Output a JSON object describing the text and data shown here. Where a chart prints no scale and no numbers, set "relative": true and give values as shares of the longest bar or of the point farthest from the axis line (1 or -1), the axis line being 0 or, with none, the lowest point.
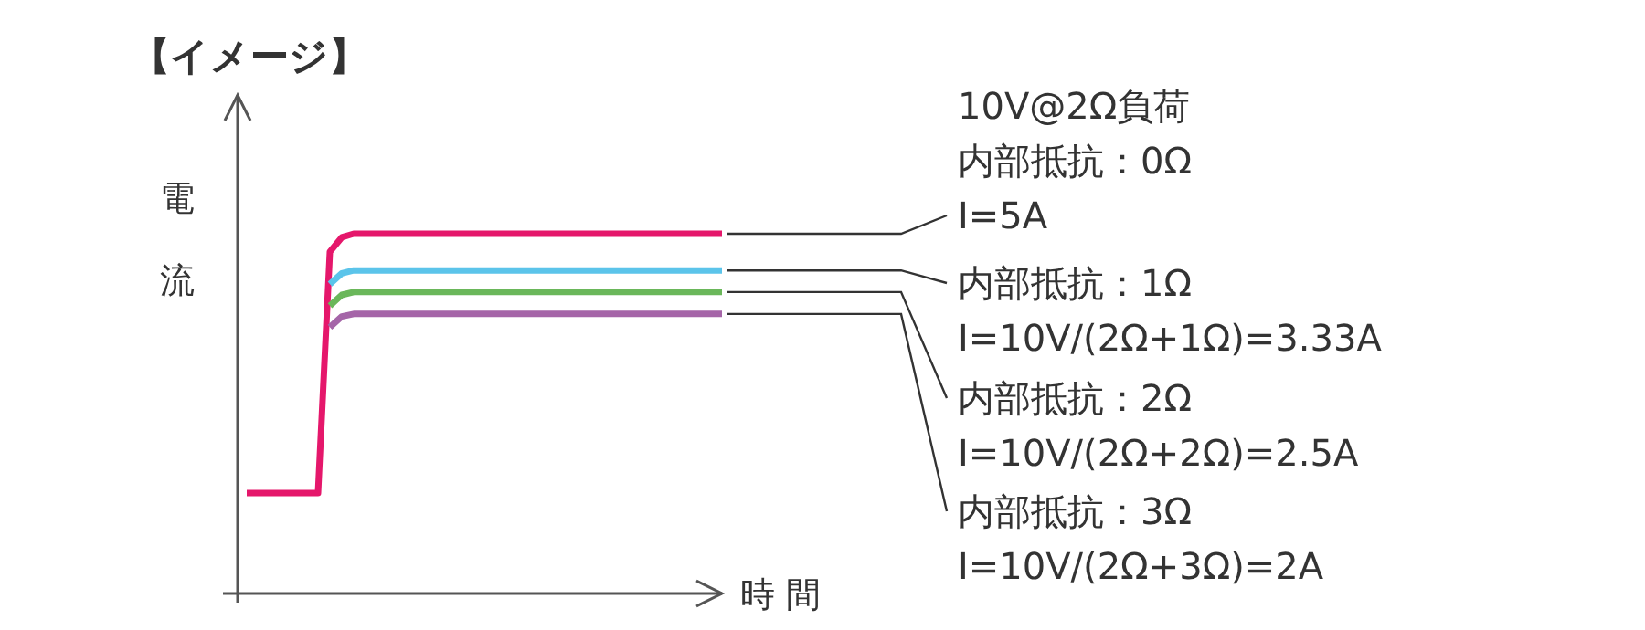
{
  "chart_data": {
    "type": "line",
    "relative": true,
    "title": "【イメージ】",
    "ylabel": "電流",
    "xlabel": "時間",
    "categories": [
      null,
      null,
      null,
      null,
      null,
      null,
      null,
      null,
      null,
      null,
      null,
      null,
      null,
      null,
      null,
      null,
      null,
      null,
      null,
      null,
      null,
      null,
      null,
      null,
      null,
      null,
      null,
      null,
      null,
      null,
      null,
      null,
      null,
      null,
      null,
      null,
      null,
      null,
      null,
      null,
      null
    ],
    "series": [
      {
        "color": "#e5176b",
        "values": [
          0.279,
          0.279,
          0.279,
          0.279,
          0.279,
          0.279,
          0.279,
          0.95,
          0.99,
          1,
          1,
          1,
          1,
          1,
          1,
          1,
          1,
          1,
          1,
          1,
          1,
          1,
          1,
          1,
          1,
          1,
          1,
          1,
          1,
          1,
          1,
          1,
          1,
          1,
          1,
          1,
          1,
          1,
          1,
          1,
          1
        ]
      },
      {
        "color": "#5bc4ea",
        "values": [
          null,
          null,
          null,
          null,
          null,
          null,
          null,
          0.86,
          0.89,
          0.898,
          0.898,
          0.898,
          0.898,
          0.898,
          0.898,
          0.898,
          0.898,
          0.898,
          0.898,
          0.898,
          0.898,
          0.898,
          0.898,
          0.898,
          0.898,
          0.898,
          0.898,
          0.898,
          0.898,
          0.898,
          0.898,
          0.898,
          0.898,
          0.898,
          0.898,
          0.898,
          0.898,
          0.898,
          0.898,
          0.898,
          0.898
        ]
      },
      {
        "color": "#6ab75a",
        "values": [
          null,
          null,
          null,
          null,
          null,
          null,
          null,
          0.8,
          0.83,
          0.838,
          0.838,
          0.838,
          0.838,
          0.838,
          0.838,
          0.838,
          0.838,
          0.838,
          0.838,
          0.838,
          0.838,
          0.838,
          0.838,
          0.838,
          0.838,
          0.838,
          0.838,
          0.838,
          0.838,
          0.838,
          0.838,
          0.838,
          0.838,
          0.838,
          0.838,
          0.838,
          0.838,
          0.838,
          0.838,
          0.838,
          0.838
        ]
      },
      {
        "color": "#a565a8",
        "values": [
          null,
          null,
          null,
          null,
          null,
          null,
          null,
          0.74,
          0.77,
          0.777,
          0.777,
          0.777,
          0.777,
          0.777,
          0.777,
          0.777,
          0.777,
          0.777,
          0.777,
          0.777,
          0.777,
          0.777,
          0.777,
          0.777,
          0.777,
          0.777,
          0.777,
          0.777,
          0.777,
          0.777,
          0.777,
          0.777,
          0.777,
          0.777,
          0.777,
          0.777,
          0.777,
          0.777,
          0.777,
          0.777,
          0.777
        ]
      }
    ],
    "annotations": [
      "10V@2Ω負荷",
      "内部抵抗：0Ω",
      "I=5A",
      "内部抵抗：1Ω",
      "I=10V/(2Ω+1Ω)=3.33A",
      "内部抵抗：2Ω",
      "I=10V/(2Ω+2Ω)=2.5A",
      "内部抵抗：3Ω",
      "I=10V/(2Ω+3Ω)=2A"
    ]
  }
}
